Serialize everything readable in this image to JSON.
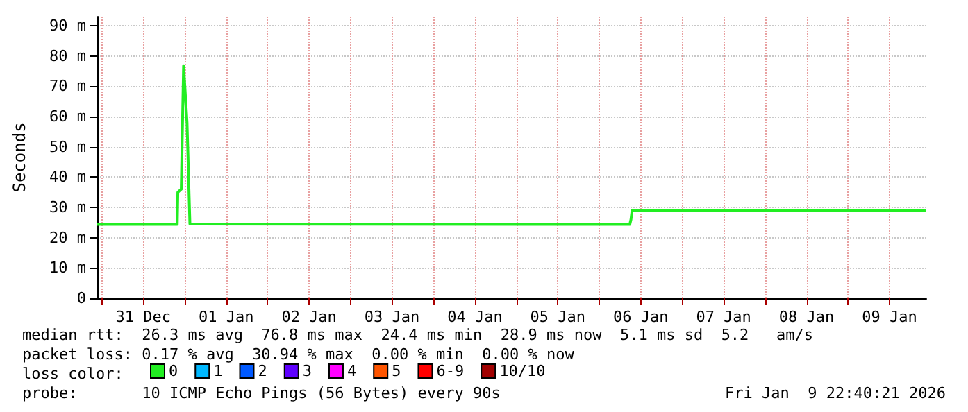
{
  "chart_data": {
    "type": "line",
    "ylabel": "Seconds",
    "legend_title": "loss color:",
    "legend": "bottom",
    "grid": true,
    "marker": "none",
    "line_style": "solid",
    "xlim": [
      "2025-12-30T22:40",
      "2026-01-09T22:40"
    ],
    "xticks": [
      {
        "value": "2025-12-31T00:00",
        "label": null
      },
      {
        "value": "2025-12-31T12:00",
        "label": "31 Dec"
      },
      {
        "value": "2026-01-01T00:00",
        "label": null
      },
      {
        "value": "2026-01-01T12:00",
        "label": "01 Jan"
      },
      {
        "value": "2026-01-02T00:00",
        "label": null
      },
      {
        "value": "2026-01-02T12:00",
        "label": "02 Jan"
      },
      {
        "value": "2026-01-03T00:00",
        "label": null
      },
      {
        "value": "2026-01-03T12:00",
        "label": "03 Jan"
      },
      {
        "value": "2026-01-04T00:00",
        "label": null
      },
      {
        "value": "2026-01-04T12:00",
        "label": "04 Jan"
      },
      {
        "value": "2026-01-05T00:00",
        "label": null
      },
      {
        "value": "2026-01-05T12:00",
        "label": "05 Jan"
      },
      {
        "value": "2026-01-06T00:00",
        "label": null
      },
      {
        "value": "2026-01-06T12:00",
        "label": "06 Jan"
      },
      {
        "value": "2026-01-07T00:00",
        "label": null
      },
      {
        "value": "2026-01-07T12:00",
        "label": "07 Jan"
      },
      {
        "value": "2026-01-08T00:00",
        "label": null
      },
      {
        "value": "2026-01-08T12:00",
        "label": "08 Jan"
      },
      {
        "value": "2026-01-09T00:00",
        "label": null
      },
      {
        "value": "2026-01-09T12:00",
        "label": "09 Jan"
      }
    ],
    "ylim": [
      0,
      93
    ],
    "yticks": [
      {
        "value": 0,
        "label": "0"
      },
      {
        "value": 10,
        "label": "10 m"
      },
      {
        "value": 20,
        "label": "20 m"
      },
      {
        "value": 30,
        "label": "30 m"
      },
      {
        "value": 40,
        "label": "40 m"
      },
      {
        "value": 50,
        "label": "50 m"
      },
      {
        "value": 60,
        "label": "60 m"
      },
      {
        "value": 70,
        "label": "70 m"
      },
      {
        "value": 80,
        "label": "80 m"
      },
      {
        "value": 90,
        "label": "90 m"
      }
    ],
    "series": [
      {
        "name": "0",
        "color": "#22ee22",
        "x": [
          "2025-12-30T22:40",
          "2025-12-31T21:50",
          "2025-12-31T22:00",
          "2025-12-31T23:00",
          "2025-12-31T23:40",
          "2026-01-01T00:40",
          "2026-01-01T01:30",
          "2026-01-06T08:50",
          "2026-01-06T09:10",
          "2026-01-06T09:30",
          "2026-01-09T22:40"
        ],
        "values": [
          24.4,
          24.4,
          35,
          36,
          76.8,
          58,
          24.5,
          24.4,
          26,
          29,
          28.9
        ]
      },
      {
        "name": "1",
        "color": "#00b8ff"
      },
      {
        "name": "2",
        "color": "#0059ff"
      },
      {
        "name": "3",
        "color": "#5e00ff"
      },
      {
        "name": "4",
        "color": "#ff00ff"
      },
      {
        "name": "5",
        "color": "#ff5500"
      },
      {
        "name": "6-9",
        "color": "#ff0000"
      },
      {
        "name": "10/10",
        "color": "#a10000"
      }
    ],
    "annotations": [
      "median rtt:  26.3 ms avg  76.8 ms max  24.4 ms min  28.9 ms now  5.1 ms sd  5.2   am/s",
      "packet loss: 0.17 % avg  30.94 % max  0.00 % min  0.00 % now",
      "probe:       10 ICMP Echo Pings (56 Bytes) every 90s",
      "Fri Jan  9 22:40:21 2026"
    ]
  }
}
